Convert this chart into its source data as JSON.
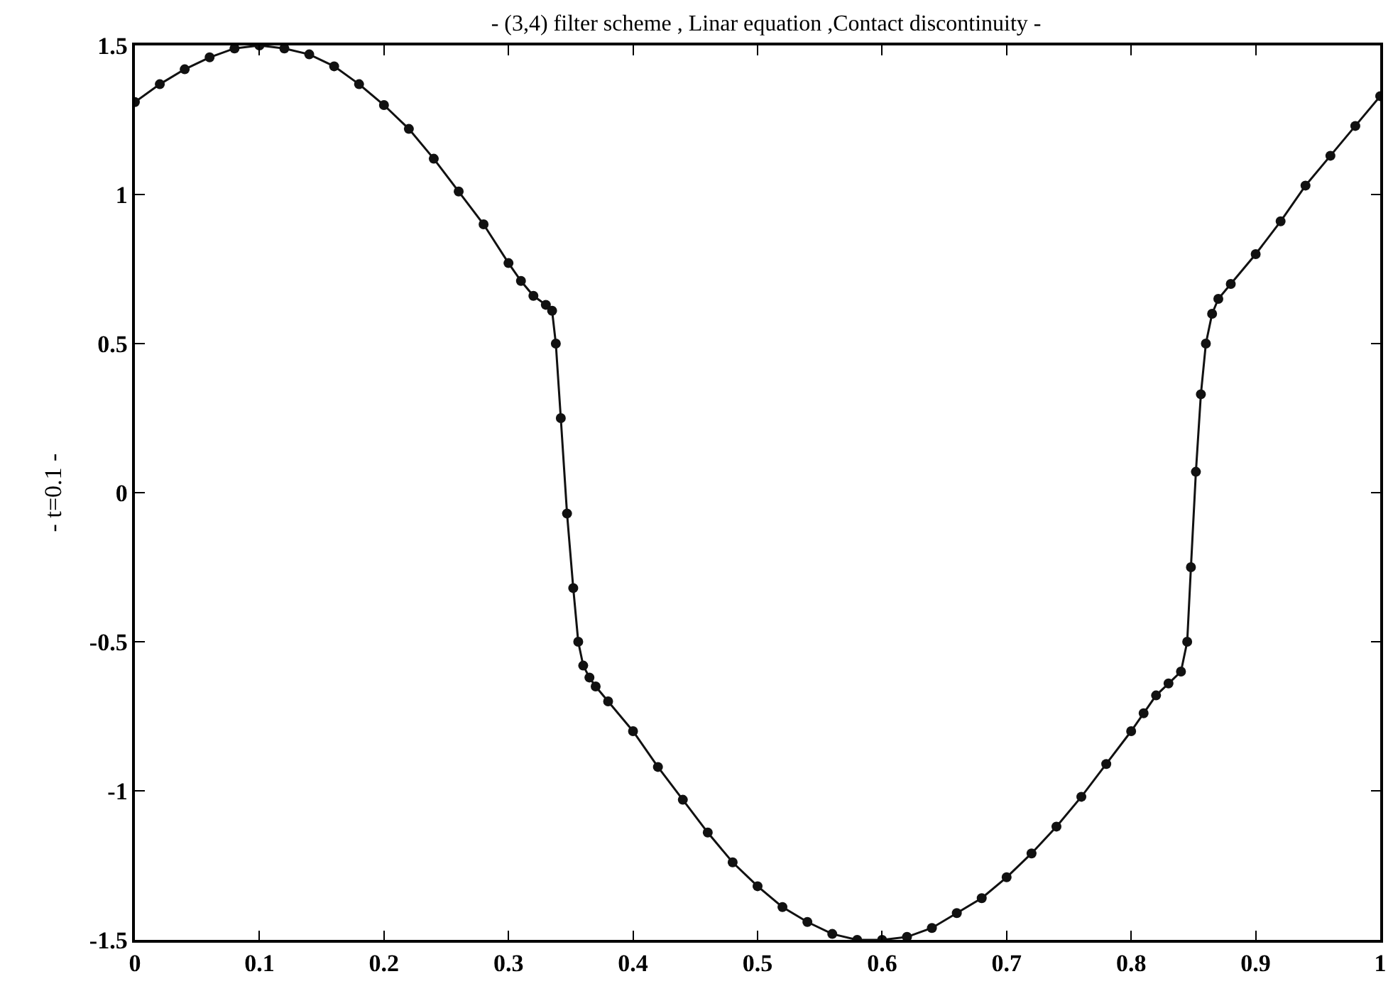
{
  "chart_data": {
    "type": "line",
    "title": "- (3,4) filter scheme , Linar equation ,Contact discontinuity -",
    "ylabel": "- t=0.1 -",
    "x": [
      0,
      0.02,
      0.04,
      0.06,
      0.08,
      0.1,
      0.12,
      0.14,
      0.16,
      0.18,
      0.2,
      0.22,
      0.24,
      0.26,
      0.28,
      0.3,
      0.31,
      0.32,
      0.33,
      0.335,
      0.338,
      0.342,
      0.347,
      0.352,
      0.356,
      0.36,
      0.365,
      0.37,
      0.38,
      0.4,
      0.42,
      0.44,
      0.46,
      0.48,
      0.5,
      0.52,
      0.54,
      0.56,
      0.58,
      0.6,
      0.62,
      0.64,
      0.66,
      0.68,
      0.7,
      0.72,
      0.74,
      0.76,
      0.78,
      0.8,
      0.81,
      0.82,
      0.83,
      0.84,
      0.845,
      0.848,
      0.852,
      0.856,
      0.86,
      0.865,
      0.87,
      0.88,
      0.9,
      0.92,
      0.94,
      0.96,
      0.98,
      1
    ],
    "series": [
      {
        "color": "#111111",
        "values": [
          1.31,
          1.37,
          1.42,
          1.46,
          1.49,
          1.5,
          1.49,
          1.47,
          1.43,
          1.37,
          1.3,
          1.22,
          1.12,
          1.01,
          0.9,
          0.77,
          0.71,
          0.66,
          0.63,
          0.61,
          0.5,
          0.25,
          -0.07,
          -0.32,
          -0.5,
          -0.58,
          -0.62,
          -0.65,
          -0.7,
          -0.8,
          -0.92,
          -1.03,
          -1.14,
          -1.24,
          -1.32,
          -1.39,
          -1.44,
          -1.48,
          -1.5,
          -1.5,
          -1.49,
          -1.46,
          -1.41,
          -1.36,
          -1.29,
          -1.21,
          -1.12,
          -1.02,
          -0.91,
          -0.8,
          -0.74,
          -0.68,
          -0.64,
          -0.6,
          -0.5,
          -0.25,
          0.07,
          0.33,
          0.5,
          0.6,
          0.65,
          0.7,
          0.8,
          0.91,
          1.03,
          1.13,
          1.23,
          1.33
        ]
      }
    ],
    "xlim": [
      0,
      1
    ],
    "ylim": [
      -1.5,
      1.5
    ],
    "xticks": [
      0,
      0.1,
      0.2,
      0.3,
      0.4,
      0.5,
      0.6,
      0.7,
      0.8,
      0.9,
      1
    ],
    "yticks": [
      -1.5,
      -1,
      -0.5,
      0,
      0.5,
      1,
      1.5
    ],
    "marker": "circle",
    "line_style": "solid"
  }
}
